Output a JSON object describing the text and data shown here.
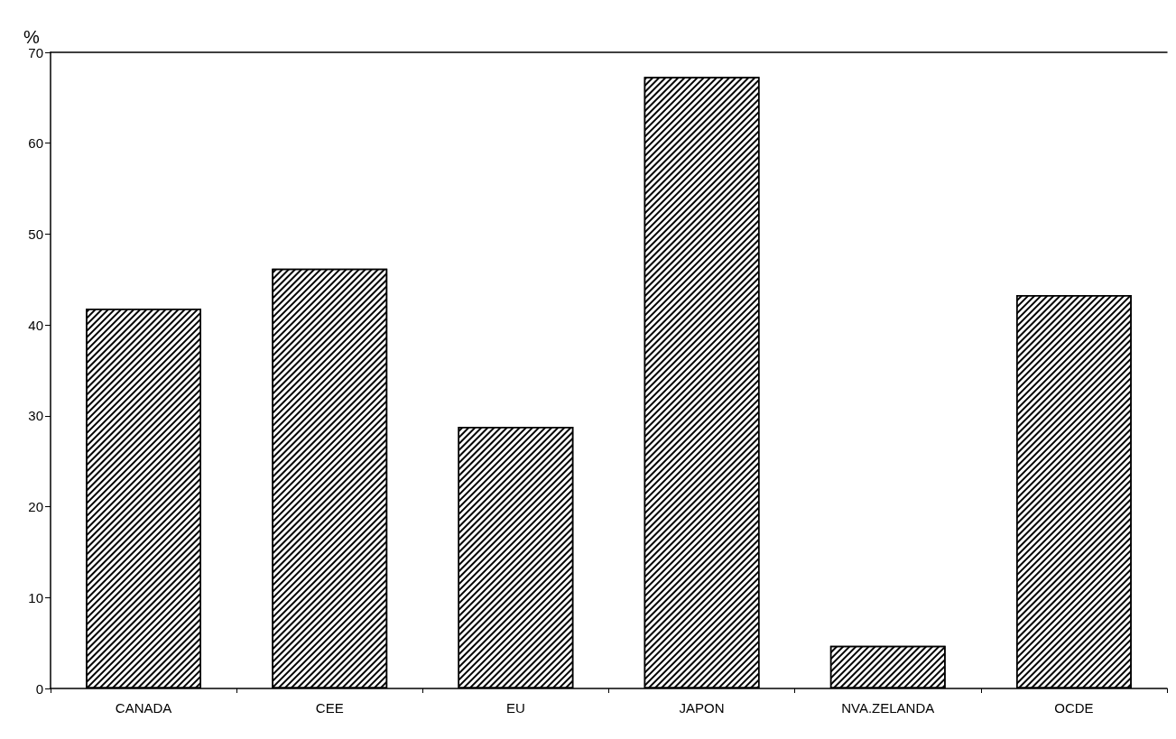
{
  "chart_data": {
    "type": "bar",
    "ylabel": "%",
    "categories": [
      "CANADA",
      "CEE",
      "EU",
      "JAPON",
      "NVA.ZELANDA",
      "OCDE"
    ],
    "values": [
      41.8,
      46.2,
      28.8,
      67.3,
      4.7,
      43.3
    ],
    "color": "#000000",
    "ylim": [
      0,
      70
    ],
    "yticks": [
      0,
      10,
      20,
      30,
      40,
      50,
      60,
      70
    ],
    "grid": false
  }
}
